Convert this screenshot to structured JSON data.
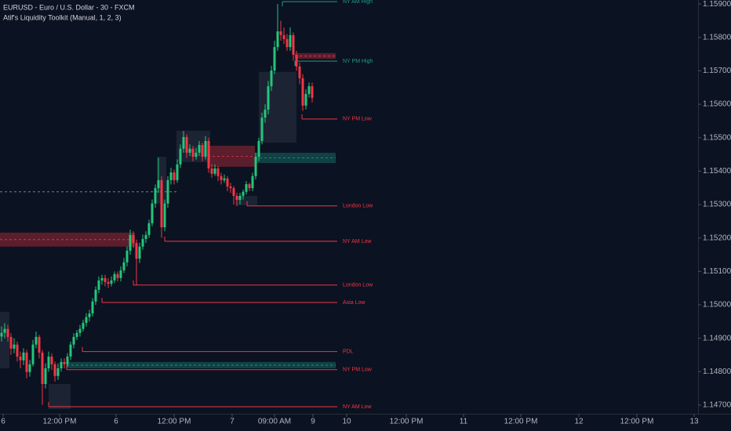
{
  "chart_data": {
    "type": "candlestick",
    "title": "EURUSD - Euro / U.S. Dollar - 30 - FXCM",
    "subtitle": "Atif's Liquidity Toolkit (Manual, 1, 2, 3)",
    "up_color": "#22c77a",
    "down_color": "#f23645",
    "ylim": [
      1.14674,
      1.15912
    ],
    "yticks": [
      {
        "value": 1.159,
        "label": "1.15900"
      },
      {
        "value": 1.158,
        "label": "1.15800"
      },
      {
        "value": 1.157,
        "label": "1.15700"
      },
      {
        "value": 1.156,
        "label": "1.15600"
      },
      {
        "value": 1.155,
        "label": "1.15500"
      },
      {
        "value": 1.154,
        "label": "1.15400"
      },
      {
        "value": 1.153,
        "label": "1.15300"
      },
      {
        "value": 1.152,
        "label": "1.15200"
      },
      {
        "value": 1.151,
        "label": "1.15100"
      },
      {
        "value": 1.15,
        "label": "1.15000"
      },
      {
        "value": 1.149,
        "label": "1.14900"
      },
      {
        "value": 1.148,
        "label": "1.14800"
      },
      {
        "value": 1.147,
        "label": "1.14700"
      }
    ],
    "xticks": [
      {
        "value": 0.5,
        "label": "6"
      },
      {
        "value": 18.5,
        "label": "12:00 PM"
      },
      {
        "value": 36.5,
        "label": "6"
      },
      {
        "value": 55,
        "label": "12:00 PM"
      },
      {
        "value": 73.5,
        "label": "7"
      },
      {
        "value": 87,
        "label": "09:00 AM"
      },
      {
        "value": 99.25,
        "label": "9"
      },
      {
        "value": 110,
        "label": "10"
      },
      {
        "value": 129,
        "label": "12:00 PM"
      },
      {
        "value": 147.25,
        "label": "11"
      },
      {
        "value": 165.5,
        "label": "12:00 PM"
      },
      {
        "value": 184,
        "label": "12"
      },
      {
        "value": 202.5,
        "label": "12:00 PM"
      },
      {
        "value": 220.75,
        "label": "13"
      }
    ],
    "ohlc": [
      [
        1.14905,
        1.14935,
        1.1489,
        1.14916
      ],
      [
        1.14916,
        1.14945,
        1.149,
        1.14928
      ],
      [
        1.14928,
        1.1494,
        1.1489,
        1.14904
      ],
      [
        1.14904,
        1.14915,
        1.1485,
        1.14869
      ],
      [
        1.14869,
        1.149,
        1.14855,
        1.14881
      ],
      [
        1.14881,
        1.1489,
        1.1483,
        1.14845
      ],
      [
        1.14845,
        1.1486,
        1.1481,
        1.14834
      ],
      [
        1.14834,
        1.1487,
        1.1482,
        1.14857
      ],
      [
        1.14857,
        1.14865,
        1.1478,
        1.14799
      ],
      [
        1.14799,
        1.14835,
        1.14785,
        1.14822
      ],
      [
        1.14822,
        1.14895,
        1.14815,
        1.14881
      ],
      [
        1.14881,
        1.1492,
        1.1487,
        1.14904
      ],
      [
        1.14904,
        1.1491,
        1.1484,
        1.14857
      ],
      [
        1.14857,
        1.14865,
        1.147,
        1.14763
      ],
      [
        1.14763,
        1.14825,
        1.1475,
        1.1481
      ],
      [
        1.1481,
        1.1486,
        1.148,
        1.14845
      ],
      [
        1.14845,
        1.14855,
        1.14805,
        1.14822
      ],
      [
        1.14822,
        1.1483,
        1.1477,
        1.14787
      ],
      [
        1.14787,
        1.14825,
        1.14775,
        1.1481
      ],
      [
        1.1481,
        1.1484,
        1.148,
        1.14829
      ],
      [
        1.14829,
        1.1484,
        1.1481,
        1.14822
      ],
      [
        1.14822,
        1.14855,
        1.14815,
        1.14845
      ],
      [
        1.14845,
        1.1489,
        1.14835,
        1.14881
      ],
      [
        1.14881,
        1.14915,
        1.1487,
        1.14904
      ],
      [
        1.14904,
        1.14925,
        1.14895,
        1.14916
      ],
      [
        1.14916,
        1.1494,
        1.14905,
        1.14928
      ],
      [
        1.14928,
        1.14955,
        1.1492,
        1.14946
      ],
      [
        1.14946,
        1.14975,
        1.14935,
        1.14963
      ],
      [
        1.14963,
        1.14985,
        1.1495,
        1.14974
      ],
      [
        1.14974,
        1.1502,
        1.14965,
        1.1501
      ],
      [
        1.1501,
        1.15055,
        1.15,
        1.15045
      ],
      [
        1.15045,
        1.15085,
        1.15035,
        1.15073
      ],
      [
        1.15073,
        1.1509,
        1.1506,
        1.1508
      ],
      [
        1.1508,
        1.1509,
        1.15055,
        1.15068
      ],
      [
        1.15068,
        1.1508,
        1.1505,
        1.15063
      ],
      [
        1.15063,
        1.15085,
        1.15055,
        1.15073
      ],
      [
        1.15073,
        1.151,
        1.15065,
        1.15092
      ],
      [
        1.15092,
        1.151,
        1.1507,
        1.1508
      ],
      [
        1.1508,
        1.15115,
        1.1507,
        1.15103
      ],
      [
        1.15103,
        1.1514,
        1.15095,
        1.15127
      ],
      [
        1.15127,
        1.15175,
        1.15115,
        1.15162
      ],
      [
        1.15162,
        1.15225,
        1.1515,
        1.15209
      ],
      [
        1.15209,
        1.1522,
        1.1517,
        1.15185
      ],
      [
        1.15185,
        1.15195,
        1.1506,
        1.15138
      ],
      [
        1.15138,
        1.15185,
        1.15125,
        1.15174
      ],
      [
        1.15174,
        1.1521,
        1.15165,
        1.15197
      ],
      [
        1.15197,
        1.1522,
        1.15185,
        1.15209
      ],
      [
        1.15209,
        1.15255,
        1.152,
        1.15244
      ],
      [
        1.15244,
        1.15315,
        1.15235,
        1.15303
      ],
      [
        1.15303,
        1.1536,
        1.1529,
        1.15349
      ],
      [
        1.15349,
        1.1544,
        1.15335,
        1.15373
      ],
      [
        1.15373,
        1.15385,
        1.152,
        1.15232
      ],
      [
        1.15232,
        1.15315,
        1.1522,
        1.15303
      ],
      [
        1.15303,
        1.15385,
        1.1529,
        1.15373
      ],
      [
        1.15373,
        1.1541,
        1.1536,
        1.15396
      ],
      [
        1.15396,
        1.15405,
        1.1536,
        1.15373
      ],
      [
        1.15373,
        1.15435,
        1.15365,
        1.1542
      ],
      [
        1.1542,
        1.1548,
        1.1541,
        1.15467
      ],
      [
        1.15467,
        1.1552,
        1.15455,
        1.15502
      ],
      [
        1.15502,
        1.1551,
        1.1544,
        1.15455
      ],
      [
        1.15455,
        1.1548,
        1.15445,
        1.15467
      ],
      [
        1.15467,
        1.15475,
        1.1543,
        1.15443
      ],
      [
        1.15443,
        1.1547,
        1.15435,
        1.15455
      ],
      [
        1.15455,
        1.1549,
        1.15445,
        1.15478
      ],
      [
        1.15478,
        1.15485,
        1.1543,
        1.15443
      ],
      [
        1.15443,
        1.15505,
        1.15435,
        1.1549
      ],
      [
        1.1549,
        1.155,
        1.15395,
        1.15408
      ],
      [
        1.15408,
        1.1542,
        1.1538,
        1.15392
      ],
      [
        1.15392,
        1.1542,
        1.15385,
        1.15408
      ],
      [
        1.15408,
        1.15415,
        1.1537,
        1.15385
      ],
      [
        1.15385,
        1.15395,
        1.1536,
        1.15373
      ],
      [
        1.15373,
        1.1539,
        1.15365,
        1.15378
      ],
      [
        1.15378,
        1.15385,
        1.1534,
        1.15354
      ],
      [
        1.15354,
        1.15365,
        1.15335,
        1.15349
      ],
      [
        1.15349,
        1.15355,
        1.153,
        1.15326
      ],
      [
        1.15326,
        1.15335,
        1.15295,
        1.15314
      ],
      [
        1.15314,
        1.15335,
        1.153,
        1.15326
      ],
      [
        1.15326,
        1.15345,
        1.15315,
        1.15338
      ],
      [
        1.15338,
        1.1537,
        1.1533,
        1.15361
      ],
      [
        1.15361,
        1.15365,
        1.1534,
        1.15349
      ],
      [
        1.15349,
        1.15395,
        1.1534,
        1.15385
      ],
      [
        1.15385,
        1.15455,
        1.15375,
        1.15443
      ],
      [
        1.15443,
        1.155,
        1.1543,
        1.1549
      ],
      [
        1.1549,
        1.15575,
        1.1548,
        1.1556
      ],
      [
        1.1556,
        1.156,
        1.15545,
        1.15584
      ],
      [
        1.15584,
        1.1567,
        1.1557,
        1.15654
      ],
      [
        1.15654,
        1.15715,
        1.1564,
        1.15701
      ],
      [
        1.15701,
        1.1579,
        1.1569,
        1.15771
      ],
      [
        1.15771,
        1.159,
        1.1576,
        1.15818
      ],
      [
        1.15818,
        1.1585,
        1.1579,
        1.15807
      ],
      [
        1.15807,
        1.1583,
        1.1578,
        1.15795
      ],
      [
        1.15795,
        1.1581,
        1.1576,
        1.15771
      ],
      [
        1.15771,
        1.1583,
        1.1576,
        1.15807
      ],
      [
        1.15807,
        1.15815,
        1.1573,
        1.15748
      ],
      [
        1.15748,
        1.1576,
        1.157,
        1.15713
      ],
      [
        1.15713,
        1.15725,
        1.1566,
        1.15678
      ],
      [
        1.15678,
        1.1569,
        1.1558,
        1.15596
      ],
      [
        1.15596,
        1.15645,
        1.15585,
        1.15631
      ],
      [
        1.15631,
        1.15665,
        1.1562,
        1.15654
      ],
      [
        1.15654,
        1.15665,
        1.15605,
        1.15619
      ]
    ],
    "levels": [
      {
        "label": "NY AM High",
        "price": 1.15907,
        "start": 89.5,
        "color": "#1e9c8a"
      },
      {
        "label": "NY PM High",
        "price": 1.15729,
        "start": 93.5,
        "color": "#1e9c8a"
      },
      {
        "label": "NY PM Low",
        "price": 1.15556,
        "start": 95.75,
        "color": "#f23645"
      },
      {
        "label": "London Low",
        "price": 1.15296,
        "start": 78.25,
        "color": "#f23645"
      },
      {
        "label": "NY AM Low",
        "price": 1.1519,
        "start": 52,
        "color": "#f23645"
      },
      {
        "label": "London Low",
        "price": 1.15059,
        "start": 42,
        "color": "#f23645"
      },
      {
        "label": "Asia Low",
        "price": 1.15007,
        "start": 32,
        "color": "#f23645"
      },
      {
        "label": "PDL",
        "price": 1.1486,
        "start": 25.75,
        "color": "#f23645"
      },
      {
        "label": "NY PM Low",
        "price": 1.14806,
        "start": 20.75,
        "color": "#f23645"
      },
      {
        "label": "NY AM Low",
        "price": 1.14695,
        "start": 15,
        "color": "#f23645"
      }
    ],
    "zones": [
      {
        "top": 1.15216,
        "bottom": 1.15174,
        "start": -0.5,
        "end": 42.5,
        "color": "#f23645"
      },
      {
        "top": 1.15476,
        "bottom": 1.15413,
        "start": 65.75,
        "end": 80.75,
        "color": "#f23645"
      },
      {
        "top": 1.15753,
        "bottom": 1.15736,
        "start": 93.5,
        "end": 106.5,
        "color": "#f23645"
      },
      {
        "top": 1.15455,
        "bottom": 1.15424,
        "start": 80.75,
        "end": 106.5,
        "color": "#1e9c8a"
      },
      {
        "top": 1.14829,
        "bottom": 1.1481,
        "start": 20.75,
        "end": 106.5,
        "color": "#1e9c8a"
      },
      {
        "top": 1.15697,
        "bottom": 1.15485,
        "start": 82,
        "end": 94,
        "color": "#8a96a8"
      },
      {
        "top": 1.15521,
        "bottom": 1.15427,
        "start": 55.75,
        "end": 66.5,
        "color": "#8a96a8"
      },
      {
        "top": 1.15443,
        "bottom": 1.15303,
        "start": 49.5,
        "end": 52.5,
        "color": "#8a96a8"
      },
      {
        "top": 1.15326,
        "bottom": 1.15298,
        "start": 74.5,
        "end": 81.5,
        "color": "#8a96a8"
      },
      {
        "top": 1.14763,
        "bottom": 1.14688,
        "start": 15,
        "end": 22,
        "color": "#8a96a8"
      },
      {
        "top": 1.14979,
        "bottom": 1.1481,
        "start": -0.5,
        "end": 2.5,
        "color": "#8a96a8"
      }
    ],
    "guides": [
      {
        "price": 1.15338,
        "start": -0.5,
        "end": 55.75,
        "color": "#6a8a80"
      }
    ]
  }
}
